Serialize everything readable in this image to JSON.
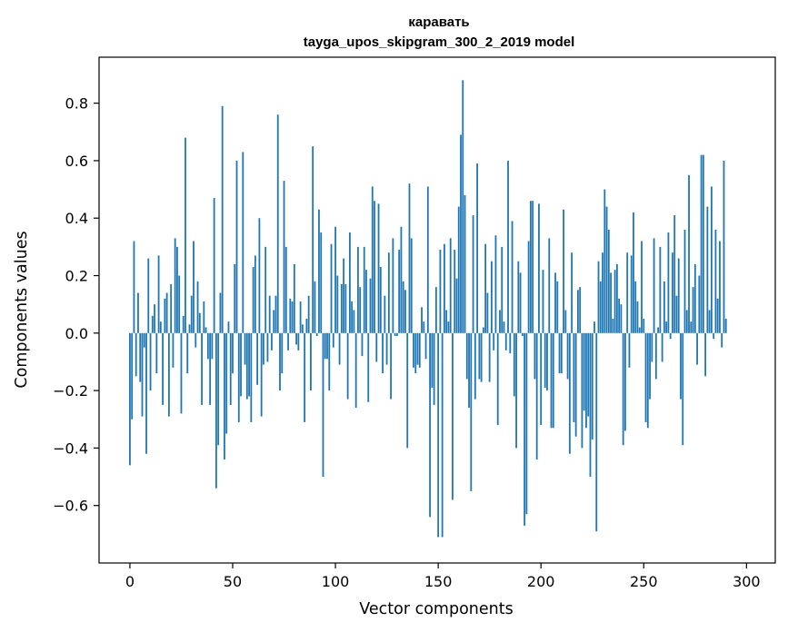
{
  "chart_data": {
    "type": "bar",
    "title_line1": "каравать",
    "title_line2": "tayga_upos_skipgram_300_2_2019 model",
    "xlabel": "Vector components",
    "ylabel": "Components values",
    "xlim": [
      -15,
      314
    ],
    "ylim": [
      -0.8,
      0.96
    ],
    "xticks": [
      0,
      50,
      100,
      150,
      200,
      250,
      300
    ],
    "yticks": [
      -0.6,
      -0.4,
      -0.2,
      0.0,
      0.2,
      0.4,
      0.6,
      0.8
    ],
    "ytick_labels": [
      "−0.6",
      "−0.4",
      "−0.2",
      "0.0",
      "0.2",
      "0.4",
      "0.6",
      "0.8"
    ],
    "xtick_labels": [
      "0",
      "50",
      "100",
      "150",
      "200",
      "250",
      "300"
    ],
    "bar_color": "#1f77b4",
    "grid": false,
    "values": [
      -0.46,
      -0.3,
      0.32,
      -0.15,
      0.14,
      -0.17,
      -0.29,
      -0.05,
      -0.42,
      0.26,
      -0.2,
      0.06,
      0.1,
      -0.14,
      0.27,
      0.04,
      -0.25,
      0.12,
      0.14,
      -0.29,
      0.17,
      -0.12,
      0.33,
      0.3,
      0.2,
      -0.28,
      0.06,
      0.68,
      -0.14,
      0.03,
      0.13,
      0.32,
      -0.05,
      0.18,
      0.07,
      -0.25,
      0.11,
      0.02,
      -0.09,
      -0.25,
      -0.09,
      0.47,
      -0.54,
      -0.39,
      0.14,
      0.79,
      -0.44,
      -0.35,
      0.04,
      -0.25,
      -0.14,
      0.24,
      0.6,
      -0.31,
      -0.22,
      0.63,
      -0.11,
      -0.23,
      -0.22,
      -0.31,
      0.23,
      0.27,
      -0.18,
      0.4,
      -0.29,
      -0.11,
      0.3,
      -0.1,
      0.13,
      -0.06,
      0.08,
      0.13,
      0.76,
      -0.2,
      -0.14,
      0.53,
      0.3,
      -0.06,
      0.12,
      0.11,
      0.24,
      -0.04,
      -0.06,
      0.11,
      0.03,
      -0.31,
      0.05,
      0.13,
      -0.2,
      0.65,
      0.18,
      -0.01,
      0.43,
      0.35,
      -0.5,
      -0.09,
      -0.09,
      -0.2,
      0.31,
      -0.05,
      0.37,
      0.2,
      -0.11,
      0.17,
      0.26,
      0.17,
      -0.23,
      0.35,
      0.11,
      0.08,
      -0.26,
      0.3,
      0.16,
      -0.08,
      0.3,
      0.22,
      -0.24,
      0.19,
      0.51,
      0.46,
      -0.1,
      0.45,
      0.23,
      -0.14,
      0.13,
      -0.11,
      0.28,
      -0.23,
      0.33,
      -0.01,
      -0.01,
      0.29,
      0.37,
      0.18,
      0.15,
      -0.4,
      0.52,
      0.33,
      -0.12,
      -0.14,
      -0.11,
      -0.12,
      0.09,
      0.04,
      -0.09,
      0.51,
      -0.64,
      -0.19,
      -0.25,
      0.16,
      -0.71,
      0.29,
      -0.71,
      0.31,
      0.08,
      0.04,
      0.33,
      -0.58,
      0.29,
      0.19,
      0.44,
      0.69,
      0.88,
      0.48,
      -0.16,
      -0.26,
      -0.55,
      0.41,
      -0.23,
      0.59,
      -0.16,
      -0.17,
      0.02,
      0.31,
      0.14,
      -0.17,
      0.25,
      -0.06,
      0.34,
      -0.32,
      0.08,
      0.3,
      0.04,
      -0.06,
      0.6,
      -0.07,
      0.39,
      -0.22,
      -0.4,
      0.25,
      0.21,
      -0.01,
      -0.67,
      -0.63,
      0.32,
      0.46,
      0.46,
      -0.16,
      -0.44,
      0.45,
      -0.32,
      0.22,
      -0.19,
      -0.2,
      0.33,
      -0.33,
      -0.33,
      0.21,
      0.18,
      -0.14,
      -0.14,
      0.43,
      0.08,
      -0.16,
      -0.42,
      0.28,
      -0.31,
      -0.36,
      0.15,
      0.16,
      -0.4,
      -0.27,
      -0.33,
      -0.29,
      -0.5,
      -0.37,
      0.04,
      -0.69,
      0.25,
      0.18,
      0.28,
      0.5,
      0.44,
      0.36,
      0.21,
      0.05,
      0.22,
      0.24,
      0.12,
      0.1,
      -0.39,
      -0.34,
      0.28,
      -0.12,
      0.27,
      0.42,
      0.18,
      0.11,
      0.02,
      0.32,
      0.05,
      -0.31,
      -0.33,
      -0.23,
      -0.1,
      0.33,
      -0.16,
      0.02,
      0.3,
      -0.1,
      0.18,
      0.04,
      0.35,
      -0.02,
      0.28,
      0.41,
      0.13,
      0.26,
      -0.23,
      -0.39,
      0.36,
      0.08,
      0.55,
      0.04,
      0.16,
      0.24,
      -0.11,
      0.2,
      0.62,
      0.62,
      -0.15,
      0.44,
      0.08,
      0.51,
      -0.02,
      0.36,
      0.12,
      0.32,
      -0.05,
      0.6,
      0.05
    ]
  }
}
